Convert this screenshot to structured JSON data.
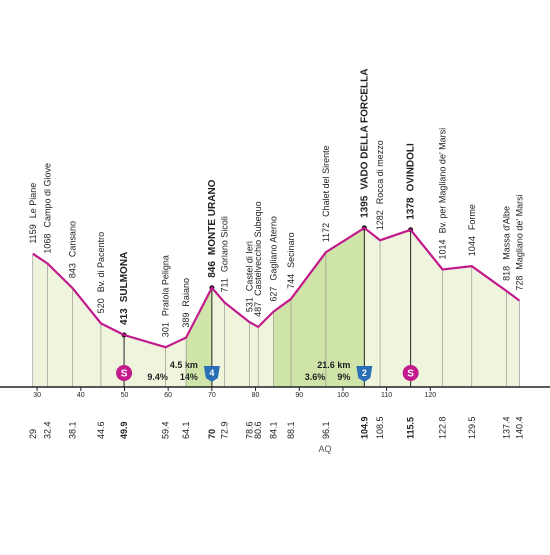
{
  "chart_data": {
    "type": "area",
    "x": [
      29.0,
      32.4,
      38.1,
      44.6,
      49.9,
      59.4,
      64.1,
      70.0,
      72.9,
      78.6,
      80.6,
      84.1,
      88.1,
      96.1,
      104.9,
      108.5,
      115.5,
      122.8,
      129.5,
      137.4,
      140.4
    ],
    "values": [
      1159,
      1068,
      843,
      520,
      413,
      301,
      389,
      846,
      711,
      531,
      487,
      627,
      744,
      1172,
      1395,
      1282,
      1378,
      1014,
      1044,
      818,
      728
    ],
    "names": [
      "Le Piane",
      "Campo di Giove",
      "Cansano",
      "Bv. di Pacentro",
      "SULMONA",
      "Pratola Peligna",
      "Raiano",
      "MONTE URANO",
      "Goriano Sicoli",
      "Castel di Ieri",
      "Castelvecchio Subequo",
      "Gagliano Aterno",
      "Secinaro",
      "Chalet del Sirente",
      "VADO DELLA FORCELLA",
      "Rocca di mezzo",
      "OVINDOLI",
      "Bv. per Magliano de' Marsi",
      "Forme",
      "Massa d'Albe",
      "Magliano de' Marsi"
    ],
    "key": [
      false,
      false,
      false,
      false,
      true,
      false,
      false,
      true,
      false,
      false,
      false,
      false,
      false,
      false,
      true,
      false,
      true,
      false,
      false,
      false,
      false
    ],
    "xlim": [
      21.5,
      147.4
    ],
    "ylim": [
      0,
      3486
    ],
    "xticks": [
      30,
      40,
      50,
      60,
      70,
      80,
      90,
      100,
      110,
      120
    ],
    "color": "#c2198c",
    "fill": "#eef5dc",
    "climb_fill": "#cfe4a8",
    "climbs": [
      {
        "start": 64.1,
        "end": 70.0,
        "length": "4.5 km",
        "avg": "9.4%",
        "max": "14%"
      },
      {
        "start": 84.1,
        "end": 104.9,
        "length": "21.6 km",
        "avg": "3.6%",
        "max": "9%"
      }
    ],
    "sprints": [
      {
        "km": 49.9,
        "label": "S"
      },
      {
        "km": 115.5,
        "label": "S"
      }
    ],
    "koms": [
      {
        "km": 70.0,
        "label": "4"
      },
      {
        "km": 104.9,
        "label": "2"
      }
    ],
    "region": "AQ"
  }
}
